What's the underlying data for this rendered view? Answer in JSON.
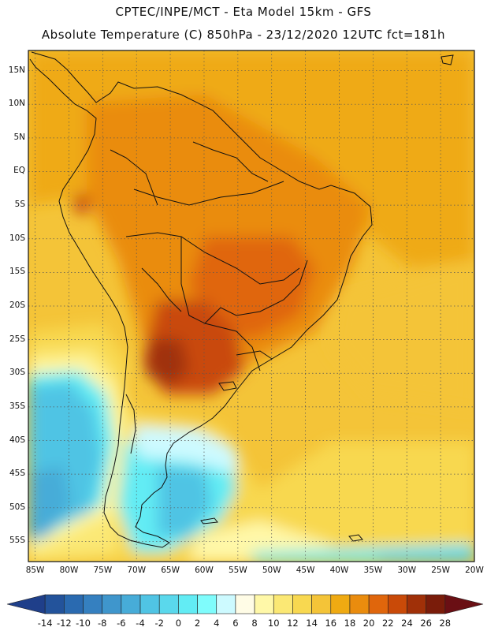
{
  "header": {
    "line1": "CPTEC/INPE/MCT -  Eta Model 15km - GFS",
    "line2": "Absolute Temperature (C) 850hPa - 23/12/2020 12UTC fct=181h"
  },
  "map": {
    "variable": "Absolute Temperature (C) 850hPa",
    "lat_ticks": [
      "15N",
      "10N",
      "5N",
      "EQ",
      "5S",
      "10S",
      "15S",
      "20S",
      "25S",
      "30S",
      "35S",
      "40S",
      "45S",
      "50S",
      "55S"
    ],
    "lon_ticks": [
      "85W",
      "80W",
      "75W",
      "70W",
      "65W",
      "60W",
      "55W",
      "50W",
      "45W",
      "40W",
      "35W",
      "30W",
      "25W",
      "20W"
    ],
    "lat_range": [
      18,
      -58
    ],
    "lon_range": [
      -86,
      -20
    ]
  },
  "colorbar": {
    "labels": [
      "-14",
      "-12",
      "-10",
      "-8",
      "-6",
      "-4",
      "-2",
      "0",
      "2",
      "4",
      "6",
      "8",
      "10",
      "12",
      "14",
      "16",
      "18",
      "20",
      "22",
      "24",
      "26",
      "28"
    ],
    "colors": [
      "#1f3f8a",
      "#23539b",
      "#2a6ab0",
      "#3580c0",
      "#3f96cc",
      "#47acd8",
      "#50c4e4",
      "#5ad8ec",
      "#62ecf4",
      "#7ffcfc",
      "#cdfaff",
      "#fffce6",
      "#fff8a8",
      "#fbe874",
      "#f8d850",
      "#f4c438",
      "#efaa12",
      "#ea8c0e",
      "#e0660c",
      "#c94a08",
      "#a03008",
      "#7a1c0a",
      "#6a0f14"
    ]
  }
}
